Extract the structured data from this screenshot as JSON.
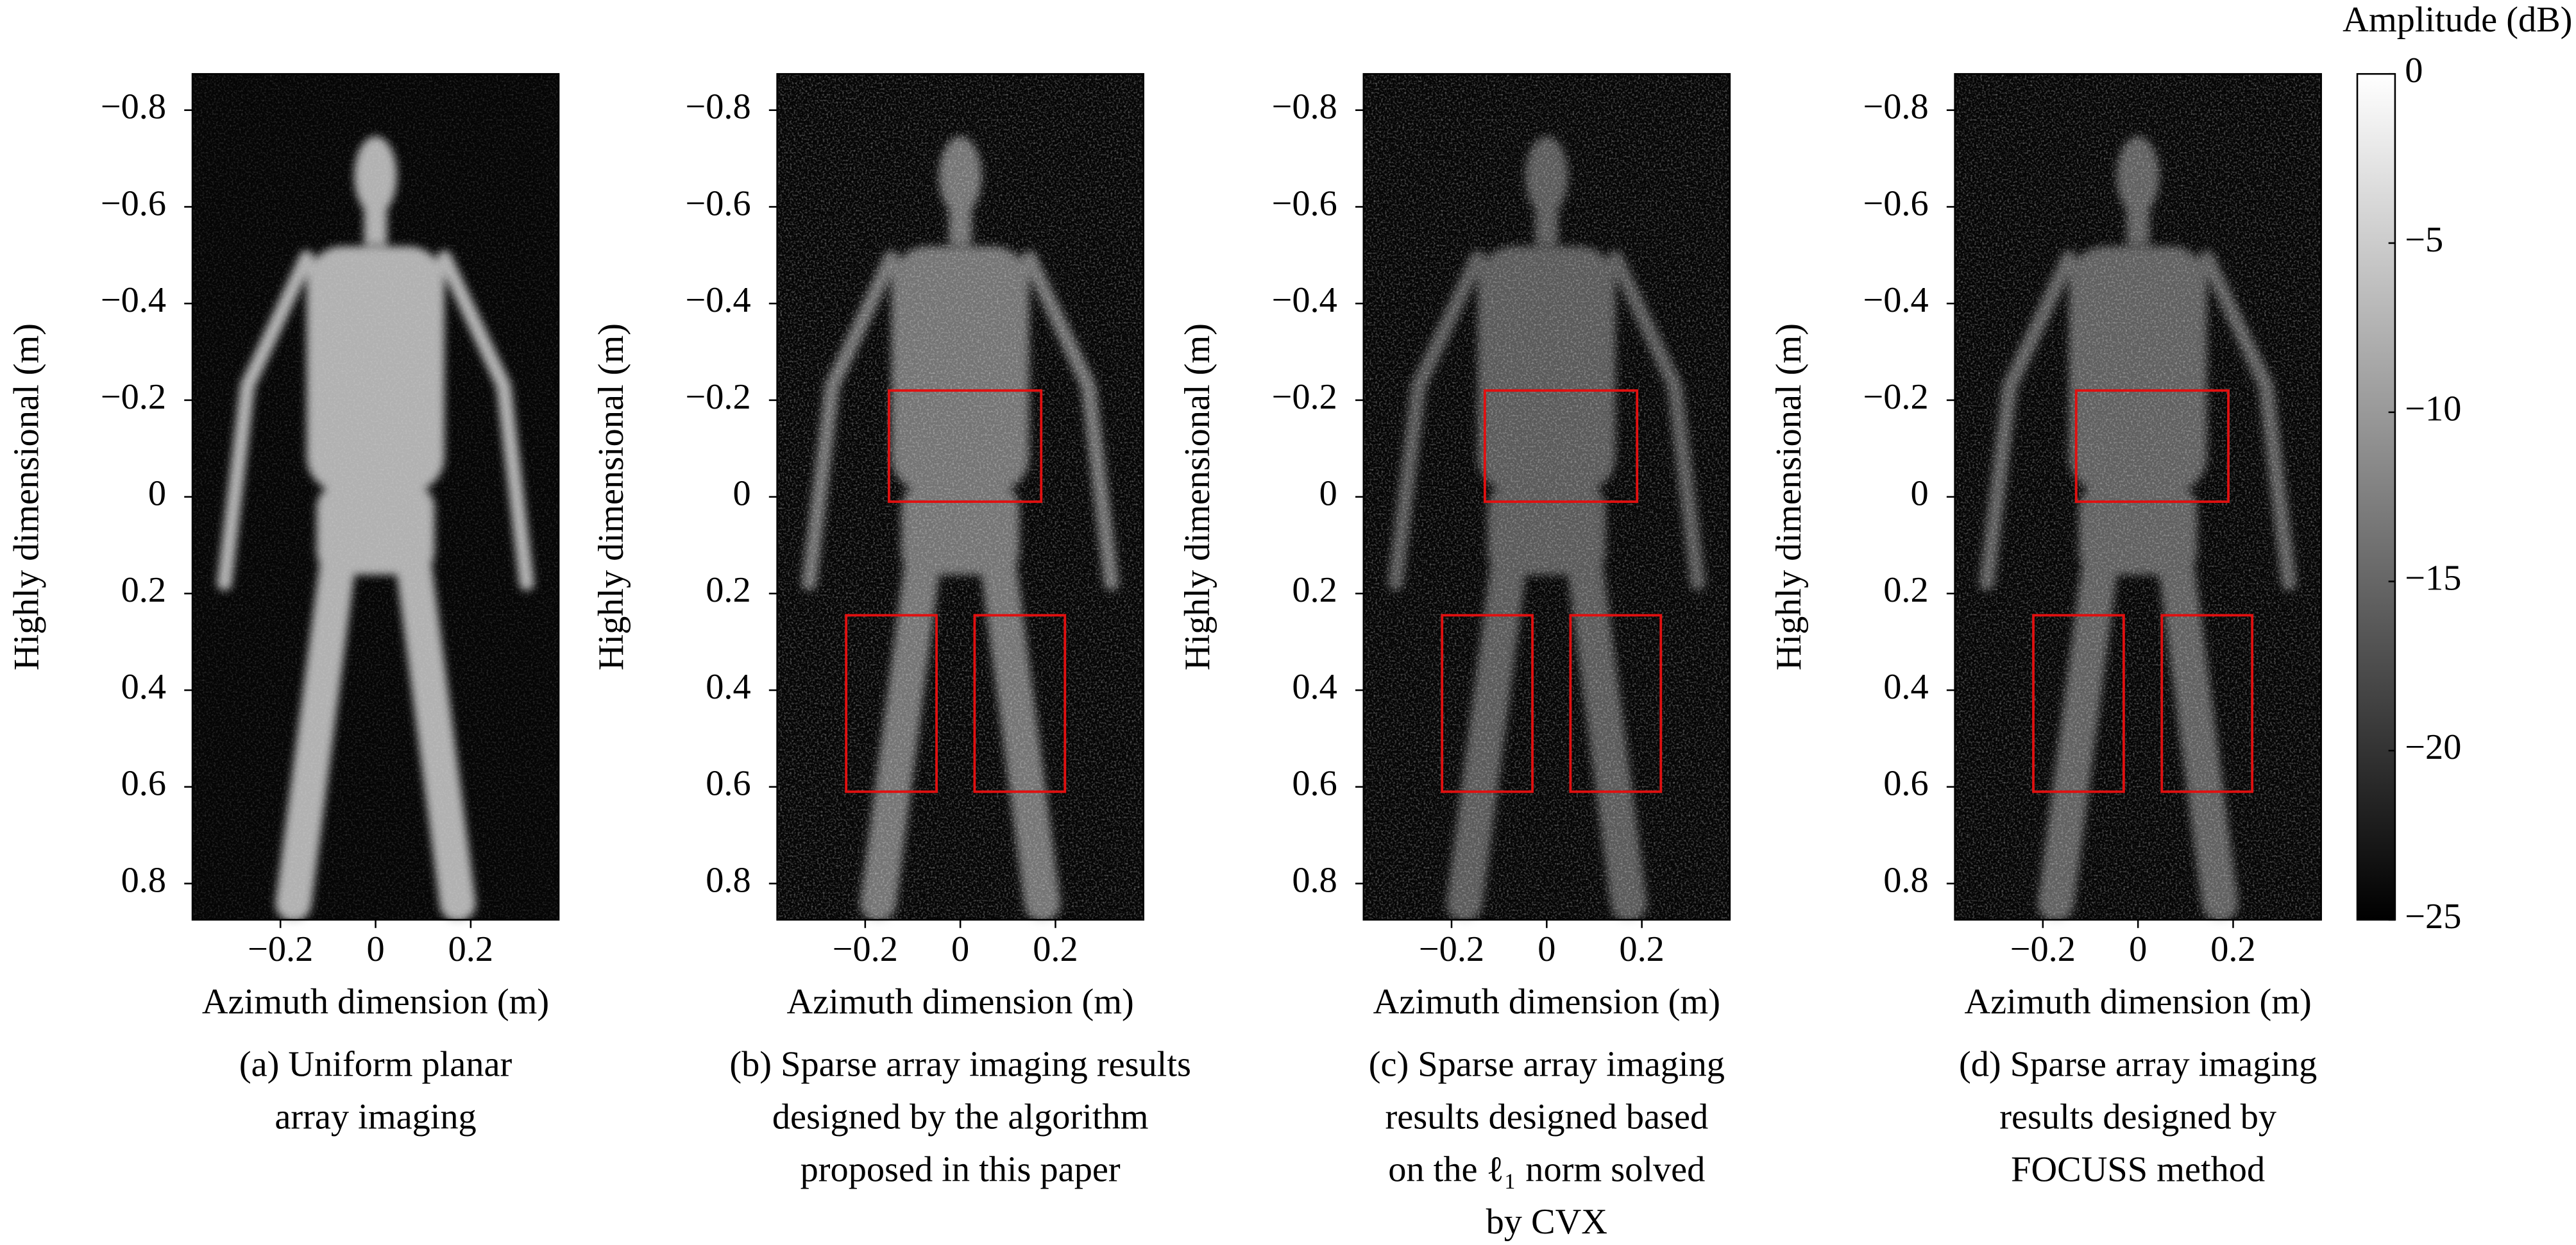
{
  "chart_data": [
    {
      "type": "image",
      "ylabel": "Highly dimensional (m)",
      "xlabel": "Azimuth dimension (m)",
      "caption": [
        "(a) Uniform planar",
        "array imaging"
      ],
      "xlim": [
        -0.385,
        0.385
      ],
      "ylim": [
        -0.875,
        0.875
      ],
      "xticks": [
        {
          "value": -0.2,
          "label": "−0.2"
        },
        0,
        0.2
      ],
      "yticks": [
        {
          "value": -0.8,
          "label": "−0.8"
        },
        {
          "value": -0.6,
          "label": "−0.6"
        },
        {
          "value": -0.4,
          "label": "−0.4"
        },
        {
          "value": -0.2,
          "label": "−0.2"
        },
        0,
        0.2,
        0.4,
        0.6,
        0.8
      ]
    },
    {
      "type": "image",
      "ylabel": "Highly dimensional (m)",
      "xlabel": "Azimuth dimension (m)",
      "caption": [
        "(b) Sparse array imaging results",
        "designed by the algorithm",
        "proposed in this paper"
      ],
      "xlim": [
        -0.385,
        0.385
      ],
      "ylim": [
        -0.875,
        0.875
      ],
      "xticks": [
        {
          "value": -0.2,
          "label": "−0.2"
        },
        0,
        0.2
      ],
      "yticks": [
        {
          "value": -0.8,
          "label": "−0.8"
        },
        {
          "value": -0.6,
          "label": "−0.6"
        },
        {
          "value": -0.4,
          "label": "−0.4"
        },
        {
          "value": -0.2,
          "label": "−0.2"
        },
        0,
        0.2,
        0.4,
        0.6,
        0.8
      ]
    },
    {
      "type": "image",
      "ylabel": "Highly dimensional (m)",
      "xlabel": "Azimuth dimension (m)",
      "caption": [
        "(c) Sparse array imaging",
        "results  designed based",
        "on the ℓ₁ norm solved",
        "by CVX"
      ],
      "xlim": [
        -0.385,
        0.385
      ],
      "ylim": [
        -0.875,
        0.875
      ],
      "xticks": [
        {
          "value": -0.2,
          "label": "−0.2"
        },
        0,
        0.2
      ],
      "yticks": [
        {
          "value": -0.8,
          "label": "−0.8"
        },
        {
          "value": -0.6,
          "label": "−0.6"
        },
        {
          "value": -0.4,
          "label": "−0.4"
        },
        {
          "value": -0.2,
          "label": "−0.2"
        },
        0,
        0.2,
        0.4,
        0.6,
        0.8
      ]
    },
    {
      "type": "image",
      "ylabel": "Highly dimensional (m)",
      "xlabel": "Azimuth dimension (m)",
      "caption": [
        "(d) Sparse array imaging",
        "results designed by",
        "FOCUSS method"
      ],
      "xlim": [
        -0.385,
        0.385
      ],
      "ylim": [
        -0.875,
        0.875
      ],
      "xticks": [
        {
          "value": -0.2,
          "label": "−0.2"
        },
        0,
        0.2
      ],
      "yticks": [
        {
          "value": -0.8,
          "label": "−0.8"
        },
        {
          "value": -0.6,
          "label": "−0.6"
        },
        {
          "value": -0.4,
          "label": "−0.4"
        },
        {
          "value": -0.2,
          "label": "−0.2"
        },
        0,
        0.2,
        0.4,
        0.6,
        0.8
      ]
    },
    {
      "type": "colorbar",
      "title": "Amplitude (dB)",
      "ylim": [
        -25,
        0
      ],
      "colormap": [
        "#000000",
        "#ffffff"
      ],
      "yticks": [
        0,
        {
          "value": -5,
          "label": "−5"
        },
        {
          "value": -10,
          "label": "−10"
        },
        {
          "value": -15,
          "label": "−15"
        },
        {
          "value": -20,
          "label": "−20"
        },
        {
          "value": -25,
          "label": "−25"
        }
      ]
    }
  ]
}
